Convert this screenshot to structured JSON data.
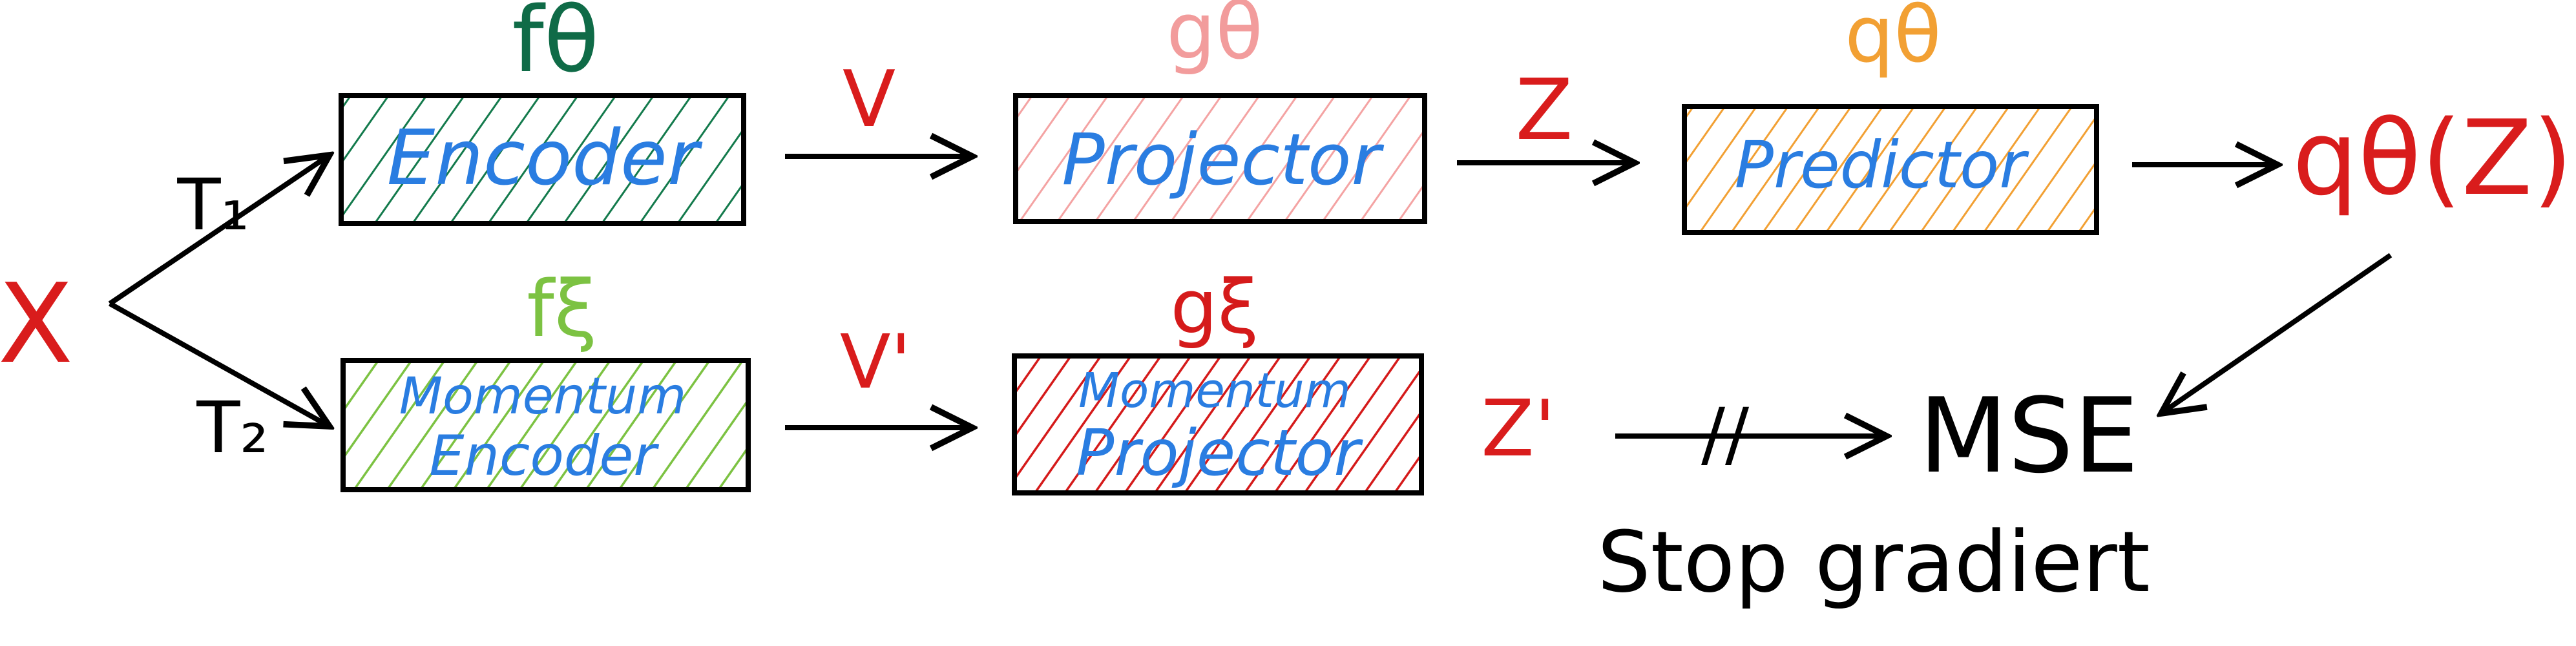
{
  "input": {
    "label": "X",
    "color": "#d91c1c"
  },
  "transforms": {
    "top": "T₁",
    "bottom": "T₂"
  },
  "online_branch": {
    "encoder": {
      "name": "fθ",
      "text": "Encoder",
      "name_color": "#0f6b47",
      "hatch_color": "#137a4c",
      "text_color": "#2a7de1"
    },
    "v": "V",
    "projector": {
      "name": "gθ",
      "text": "Projector",
      "name_color": "#f29c9c",
      "hatch_color": "#f4a3a3",
      "text_color": "#2a7de1"
    },
    "z": "Z",
    "predictor": {
      "name": "qθ",
      "text": "Predictor",
      "name_color": "#f2a033",
      "hatch_color": "#f2a033",
      "text_color": "#2a7de1"
    },
    "output": "qθ(Z)"
  },
  "target_branch": {
    "encoder": {
      "name": "fξ",
      "text_line1": "Momentum",
      "text_line2": "Encoder",
      "name_color": "#7cc242",
      "hatch_color": "#7cc242",
      "text_color": "#2a7de1"
    },
    "v": "V'",
    "projector": {
      "name": "gξ",
      "text_line1": "Momentum",
      "text_line2": "Projector",
      "name_color": "#d51a1a",
      "hatch_color": "#d51a1a",
      "text_color": "#2a7de1"
    },
    "z": "Z'"
  },
  "stop_marker": "//",
  "loss": "MSE",
  "stop_gradient_label": "Stop gradiert",
  "colors": {
    "accent_red": "#d91c1c",
    "stroke": "#000000"
  }
}
